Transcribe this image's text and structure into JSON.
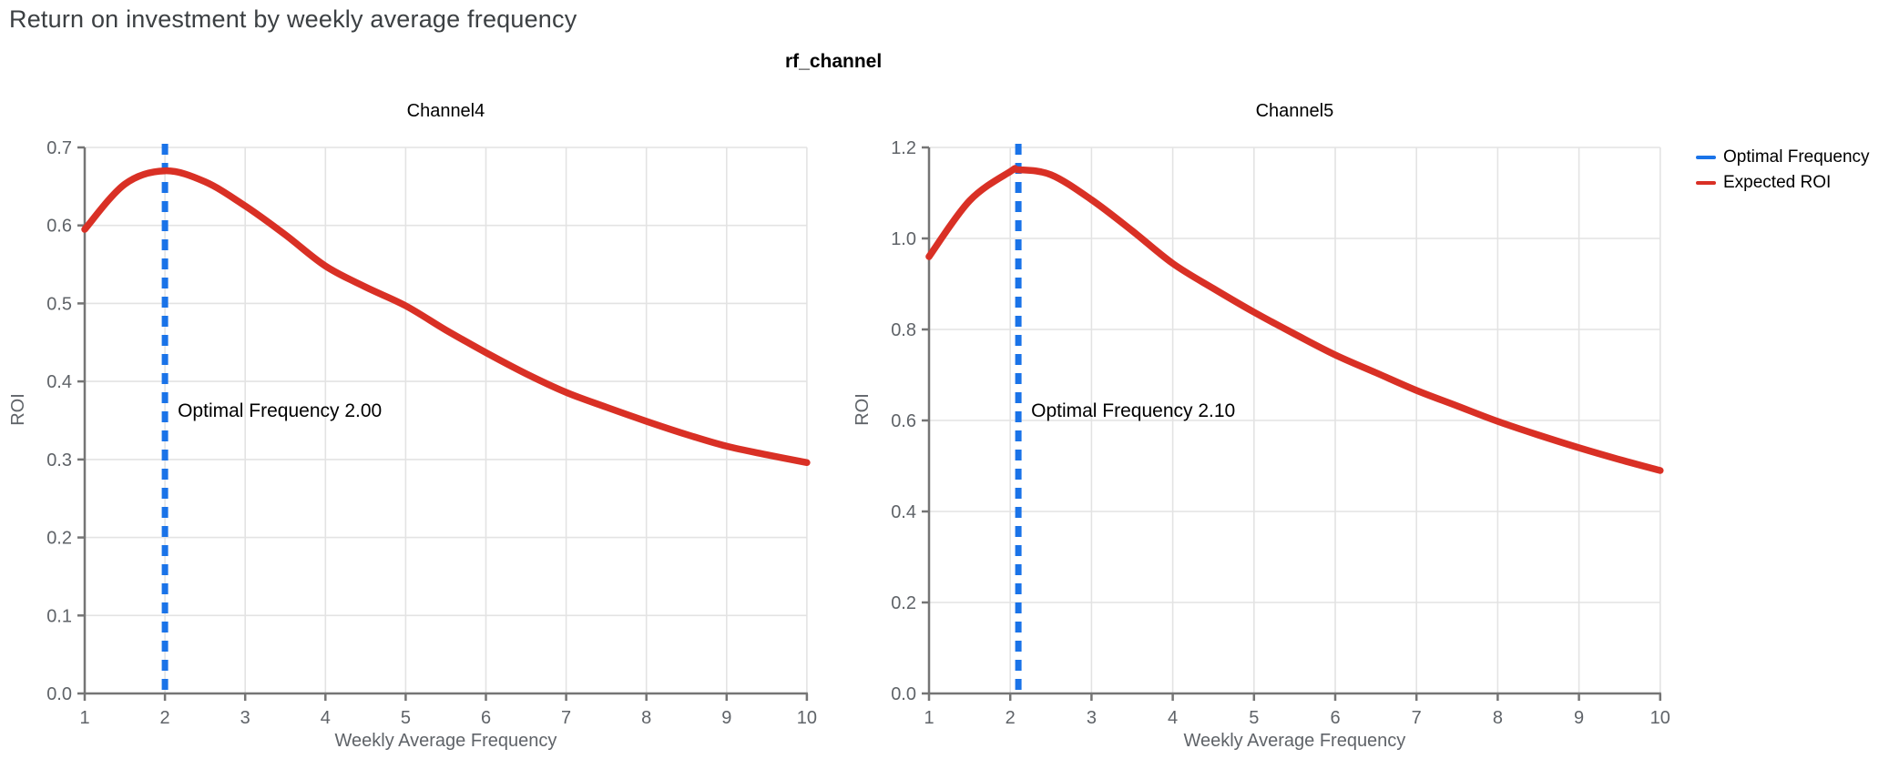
{
  "page_title": "Return on investment by weekly average frequency",
  "figure_title": "rf_channel",
  "legend": {
    "position": "top-right",
    "items": [
      {
        "name": "optimal-frequency",
        "label": "Optimal Frequency",
        "color": "#1a73e8"
      },
      {
        "name": "expected-roi",
        "label": "Expected ROI",
        "color": "#d93025"
      }
    ]
  },
  "colors": {
    "accent_blue": "#1a73e8",
    "accent_red": "#d93025",
    "page_title_text": "#3c4043",
    "axis_text": "#5f6368",
    "axis_line": "#757575",
    "grid_line": "#e3e3e3",
    "panel_text": "#000000",
    "background": "#ffffff"
  },
  "chart_data": [
    {
      "type": "line",
      "title": "Channel4",
      "xlabel": "Weekly Average Frequency",
      "ylabel": "ROI",
      "xlim": [
        1,
        10
      ],
      "ylim": [
        0,
        0.7
      ],
      "xtick_labels": [
        "1",
        "2",
        "3",
        "4",
        "5",
        "6",
        "7",
        "8",
        "9",
        "10"
      ],
      "ytick_labels": [
        "0.0",
        "0.1",
        "0.2",
        "0.3",
        "0.4",
        "0.5",
        "0.6",
        "0.7"
      ],
      "grid": true,
      "optimal_frequency": 2.0,
      "annotation": "Optimal Frequency  2.00",
      "series": [
        {
          "name": "Expected ROI",
          "x": [
            1,
            1.5,
            2,
            2.5,
            3,
            3.5,
            4,
            4.5,
            5,
            5.5,
            6,
            6.5,
            7,
            7.5,
            8,
            8.5,
            9,
            9.5,
            10
          ],
          "y": [
            0.595,
            0.653,
            0.67,
            0.656,
            0.625,
            0.588,
            0.548,
            0.521,
            0.497,
            0.466,
            0.437,
            0.41,
            0.386,
            0.367,
            0.349,
            0.332,
            0.317,
            0.306,
            0.296
          ]
        }
      ]
    },
    {
      "type": "line",
      "title": "Channel5",
      "xlabel": "Weekly Average Frequency",
      "ylabel": "ROI",
      "xlim": [
        1,
        10
      ],
      "ylim": [
        0,
        1.2
      ],
      "xtick_labels": [
        "1",
        "2",
        "3",
        "4",
        "5",
        "6",
        "7",
        "8",
        "9",
        "10"
      ],
      "ytick_labels": [
        "0.0",
        "0.2",
        "0.4",
        "0.6",
        "0.8",
        "1.0",
        "1.2"
      ],
      "grid": true,
      "optimal_frequency": 2.1,
      "annotation": "Optimal Frequency  2.10",
      "series": [
        {
          "name": "Expected ROI",
          "x": [
            1,
            1.5,
            2,
            2.1,
            2.5,
            3,
            3.5,
            4,
            4.5,
            5,
            5.5,
            6,
            6.5,
            7,
            7.5,
            8,
            8.5,
            9,
            9.5,
            10
          ],
          "y": [
            0.96,
            1.083,
            1.147,
            1.151,
            1.14,
            1.085,
            1.017,
            0.945,
            0.89,
            0.838,
            0.79,
            0.744,
            0.705,
            0.666,
            0.632,
            0.598,
            0.568,
            0.54,
            0.514,
            0.49
          ]
        }
      ]
    }
  ]
}
